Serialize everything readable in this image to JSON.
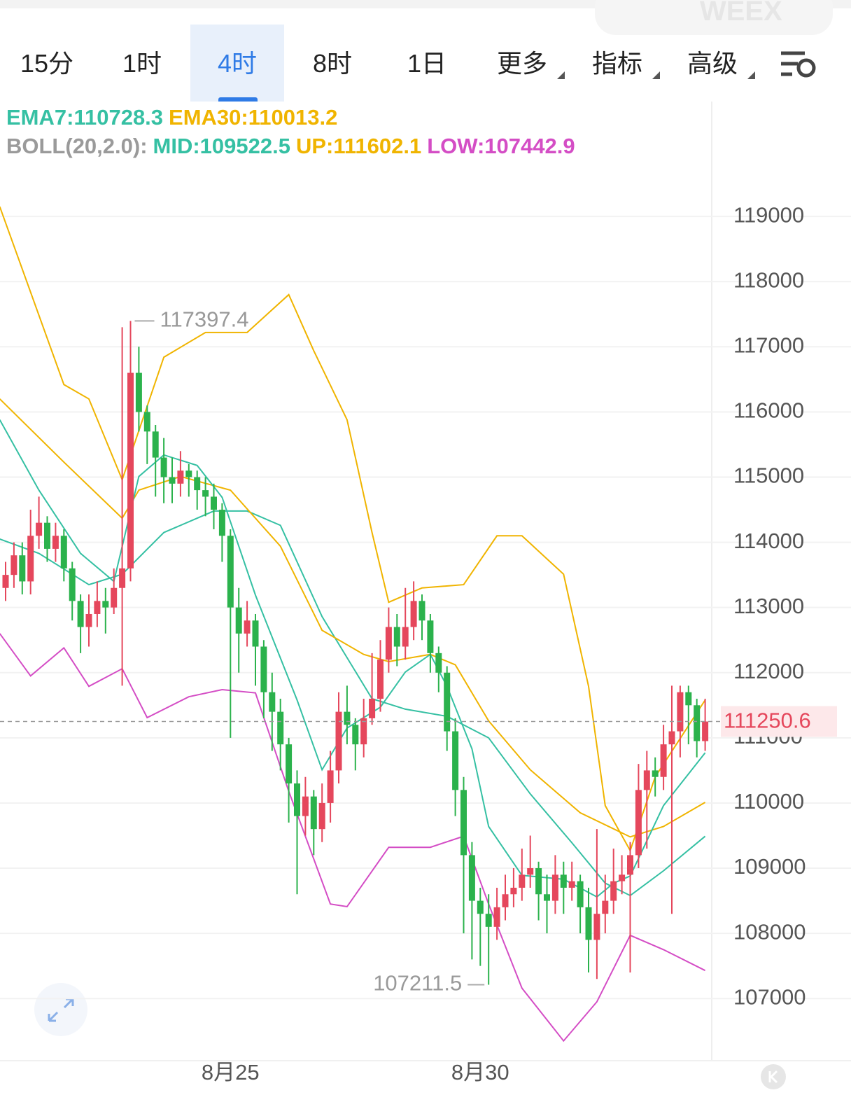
{
  "tabs": [
    "15分",
    "1时",
    "4时",
    "8时",
    "1日",
    "更多",
    "指标",
    "高级"
  ],
  "active_tab": 2,
  "watermark": "WEEX",
  "indicators": {
    "ema": [
      {
        "text": "EMA7:110728.3",
        "color": "#35c0a3"
      },
      {
        "text": "EMA30:110013.2",
        "color": "#f0b400"
      }
    ],
    "boll": [
      {
        "text": "BOLL(20,2.0):",
        "color": "#9a9a9a"
      },
      {
        "text": "MID:109522.5",
        "color": "#35c0a3"
      },
      {
        "text": "UP:111602.1",
        "color": "#f0b400"
      },
      {
        "text": "LOW:107442.9",
        "color": "#d44dc5"
      }
    ]
  },
  "chart_data": {
    "type": "candlestick",
    "up_color": "#e5475c",
    "down_color": "#2bb24c",
    "categories": [
      null,
      null,
      null,
      null,
      null,
      null,
      null,
      null,
      null,
      null,
      null,
      null,
      null,
      null,
      null,
      null,
      null,
      null,
      null,
      null,
      null,
      null,
      null,
      null,
      null,
      null,
      null,
      "8月25",
      null,
      null,
      null,
      null,
      null,
      null,
      null,
      null,
      null,
      null,
      null,
      null,
      null,
      null,
      null,
      null,
      null,
      null,
      null,
      null,
      null,
      null,
      null,
      null,
      null,
      null,
      null,
      null,
      null,
      "8月30",
      null,
      null,
      null,
      null,
      null,
      null,
      null,
      null,
      null,
      null,
      null,
      null,
      null,
      null,
      null,
      null,
      null,
      null,
      null,
      null,
      null,
      null,
      null,
      null,
      null,
      null,
      null
    ],
    "open": [
      113300,
      113500,
      113800,
      113400,
      114100,
      114300,
      113900,
      114100,
      113600,
      113100,
      112700,
      112900,
      113100,
      113000,
      113300,
      113600,
      116600,
      116000,
      115700,
      115300,
      115000,
      114900,
      115100,
      115000,
      114800,
      114700,
      114500,
      114100,
      113000,
      112600,
      112800,
      112400,
      111700,
      111400,
      110900,
      110300,
      109800,
      110100,
      109600,
      110000,
      110500,
      111400,
      111200,
      110900,
      111300,
      111600,
      112200,
      112700,
      112400,
      112700,
      113100,
      112800,
      112300,
      112000,
      111100,
      110200,
      109200,
      108500,
      108300,
      108100,
      108400,
      108600,
      108700,
      108900,
      109000,
      108600,
      108500,
      108900,
      108700,
      108800,
      108400,
      107900,
      108300,
      108500,
      108800,
      108900,
      109200,
      110200,
      110500,
      110400,
      110900,
      111100,
      111700,
      111500,
      110950
    ],
    "high": [
      113700,
      114000,
      114000,
      114500,
      114700,
      114400,
      114300,
      114200,
      113700,
      113200,
      113200,
      113400,
      113300,
      113600,
      117300,
      117397.4,
      117000,
      116100,
      115800,
      115600,
      115300,
      115400,
      115200,
      115100,
      115000,
      114900,
      114600,
      114200,
      113300,
      113100,
      112900,
      112500,
      112000,
      111600,
      111000,
      110500,
      110400,
      110200,
      110300,
      110800,
      111700,
      111800,
      111300,
      111600,
      112300,
      112500,
      113000,
      112900,
      113300,
      113400,
      113200,
      112900,
      112400,
      112100,
      111300,
      110400,
      109400,
      108700,
      108600,
      108700,
      108900,
      109000,
      109300,
      109500,
      109100,
      108900,
      109200,
      109100,
      109100,
      108900,
      108700,
      109600,
      108900,
      109300,
      109200,
      109400,
      110600,
      110800,
      110700,
      111200,
      111800,
      111800,
      111800,
      111600,
      111600
    ],
    "low": [
      113100,
      113300,
      113200,
      113200,
      113900,
      113700,
      113700,
      113400,
      112800,
      112300,
      112400,
      112700,
      112600,
      112900,
      111800,
      113400,
      115700,
      115200,
      114700,
      114600,
      114600,
      114700,
      114700,
      114500,
      114400,
      114200,
      113700,
      111000,
      112000,
      112400,
      111800,
      111300,
      110800,
      110500,
      109700,
      108600,
      109500,
      109200,
      109400,
      109700,
      110300,
      110900,
      110500,
      110700,
      111200,
      111400,
      112000,
      112100,
      112200,
      112500,
      112500,
      112000,
      111700,
      110800,
      109800,
      108000,
      107600,
      107500,
      107211.5,
      107900,
      108200,
      108400,
      108500,
      108700,
      108200,
      108000,
      108300,
      108300,
      108500,
      108000,
      107400,
      107300,
      108000,
      108300,
      108600,
      107400,
      109000,
      109300,
      110100,
      110200,
      108300,
      110700,
      110900,
      110700,
      110800
    ],
    "close": [
      113500,
      113800,
      113400,
      114100,
      114300,
      113900,
      114100,
      113600,
      113100,
      112700,
      112900,
      113100,
      113000,
      113300,
      113600,
      116600,
      116000,
      115700,
      115300,
      115000,
      114900,
      115100,
      115000,
      114800,
      114700,
      114500,
      114100,
      113000,
      112600,
      112800,
      112400,
      111700,
      111400,
      110900,
      110300,
      109800,
      110100,
      109600,
      110000,
      110500,
      111400,
      111200,
      110900,
      111300,
      111600,
      112200,
      112700,
      112400,
      112700,
      113100,
      112800,
      112300,
      112000,
      111100,
      110200,
      109200,
      108500,
      108300,
      108100,
      108400,
      108600,
      108700,
      108900,
      109000,
      108600,
      108500,
      108900,
      108700,
      108800,
      108400,
      107900,
      108300,
      108500,
      108800,
      108900,
      109200,
      110200,
      110500,
      110400,
      110900,
      111100,
      111700,
      111500,
      110950,
      111250.6
    ],
    "lines": [
      {
        "name": "UP",
        "color": "#f0b400",
        "x": [
          -0.7,
          7,
          10,
          14,
          19,
          24,
          29,
          34,
          37,
          41,
          44,
          46,
          50,
          55,
          59,
          62,
          67,
          70,
          72,
          75,
          78,
          84
        ],
        "values": [
          119150,
          116420,
          116200,
          114960,
          116840,
          117220,
          117220,
          117800,
          116940,
          115880,
          114150,
          113080,
          113300,
          113350,
          114100,
          114100,
          113510,
          111790,
          109960,
          109270,
          110400,
          111580
        ]
      },
      {
        "name": "LOW",
        "color": "#d44dc5",
        "x": [
          -0.7,
          3,
          7,
          10,
          14,
          17,
          22,
          26,
          30,
          34,
          39,
          41,
          46,
          51,
          55,
          58,
          62,
          67,
          71,
          75,
          79,
          84
        ],
        "values": [
          112600,
          111950,
          112380,
          111790,
          112060,
          111310,
          111630,
          111740,
          111690,
          110180,
          108450,
          108410,
          109320,
          109320,
          109490,
          108450,
          107160,
          106350,
          106950,
          107970,
          107750,
          107430
        ]
      },
      {
        "name": "MID",
        "color": "#35c0a3",
        "x": [
          -0.7,
          4,
          10,
          14,
          19,
          25,
          29,
          33,
          38,
          44,
          48,
          53,
          58,
          63,
          68,
          72,
          75,
          79,
          84
        ],
        "values": [
          114050,
          113830,
          113350,
          113510,
          114150,
          114480,
          114480,
          114260,
          112860,
          111600,
          111440,
          111330,
          111000,
          110140,
          109390,
          108770,
          108580,
          108960,
          109490
        ]
      },
      {
        "name": "EMA30",
        "color": "#f0b400",
        "x": [
          -0.7,
          7,
          14,
          16,
          21,
          27,
          33,
          38,
          43,
          46,
          51,
          54,
          58,
          63,
          69,
          75,
          79,
          84
        ],
        "values": [
          116200,
          115230,
          114370,
          114800,
          115010,
          114800,
          113940,
          112650,
          112280,
          112170,
          112280,
          112120,
          111260,
          110510,
          109850,
          109480,
          109640,
          110010
        ]
      },
      {
        "name": "EMA7",
        "color": "#35c0a3",
        "x": [
          -0.7,
          4,
          9,
          13,
          16,
          19,
          23,
          26,
          30,
          35,
          38,
          41,
          45,
          48,
          51,
          53,
          56,
          58,
          62,
          67,
          71,
          73,
          75,
          79,
          84
        ],
        "values": [
          115880,
          114800,
          113830,
          113400,
          115010,
          115340,
          115180,
          114690,
          113190,
          111580,
          110510,
          111150,
          111470,
          112010,
          112280,
          111790,
          110830,
          109640,
          108890,
          108830,
          108560,
          108770,
          108880,
          109960,
          110770
        ]
      }
    ],
    "annotations": [
      {
        "text": "117397.4",
        "x": 15,
        "y": 117397.4
      },
      {
        "text": "107211.5",
        "x": 58,
        "y": 107211.5
      }
    ],
    "ylim": [
      106100,
      119850
    ],
    "yticks": [
      107000,
      108000,
      109000,
      110000,
      111000,
      112000,
      113000,
      114000,
      115000,
      116000,
      117000,
      118000,
      119000
    ],
    "grid": true
  }
}
